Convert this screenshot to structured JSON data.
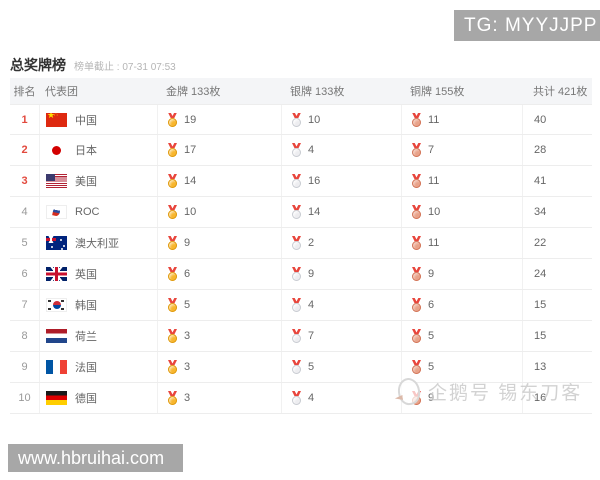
{
  "overlays": {
    "tg_badge": "TG: MYYJJPP",
    "site_badge": "www.hbruihai.com",
    "watermark_text": "企鹅号 锡东刀客"
  },
  "header": {
    "title": "总奖牌榜",
    "subtitle": "榜单截止 : 07-31 07:53"
  },
  "icons": {
    "gold": "gold-medal-with-red-ribbon",
    "silver": "silver-medal-with-red-ribbon",
    "bronze": "bronze-medal-with-red-ribbon",
    "watermark_logo": "penguin-outline"
  },
  "colors": {
    "rank_top3": "#e2493d",
    "gold": "#f8b62d",
    "silver": "#ededf0",
    "bronze": "#e9a289",
    "badge_bg": "#a7a7a7",
    "header_bg": "#f4f5f7"
  },
  "table": {
    "columns": [
      "排名",
      "代表团",
      "金牌 133枚",
      "银牌 133枚",
      "铜牌 155枚",
      "共计 421枚"
    ],
    "rows": [
      {
        "rank": "1",
        "flag": "cn",
        "name": "中国",
        "gold": "19",
        "silver": "10",
        "bronze": "11",
        "total": "40"
      },
      {
        "rank": "2",
        "flag": "jp",
        "name": "日本",
        "gold": "17",
        "silver": "4",
        "bronze": "7",
        "total": "28"
      },
      {
        "rank": "3",
        "flag": "us",
        "name": "美国",
        "gold": "14",
        "silver": "16",
        "bronze": "11",
        "total": "41"
      },
      {
        "rank": "4",
        "flag": "roc",
        "name": "ROC",
        "gold": "10",
        "silver": "14",
        "bronze": "10",
        "total": "34"
      },
      {
        "rank": "5",
        "flag": "au",
        "name": "澳大利亚",
        "gold": "9",
        "silver": "2",
        "bronze": "11",
        "total": "22"
      },
      {
        "rank": "6",
        "flag": "gb",
        "name": "英国",
        "gold": "6",
        "silver": "9",
        "bronze": "9",
        "total": "24"
      },
      {
        "rank": "7",
        "flag": "kr",
        "name": "韩国",
        "gold": "5",
        "silver": "4",
        "bronze": "6",
        "total": "15"
      },
      {
        "rank": "8",
        "flag": "nl",
        "name": "荷兰",
        "gold": "3",
        "silver": "7",
        "bronze": "5",
        "total": "15"
      },
      {
        "rank": "9",
        "flag": "fr",
        "name": "法国",
        "gold": "3",
        "silver": "5",
        "bronze": "5",
        "total": "13"
      },
      {
        "rank": "10",
        "flag": "de",
        "name": "德国",
        "gold": "3",
        "silver": "4",
        "bronze": "9",
        "total": "16"
      }
    ]
  }
}
